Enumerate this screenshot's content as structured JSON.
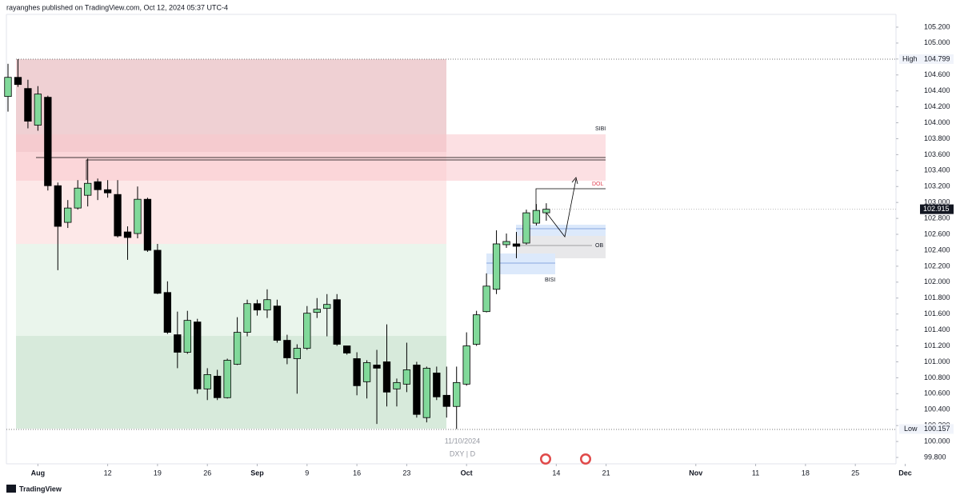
{
  "header": "rayanghes published on TradingView.com, Oct 12, 2024 05:37 UTC-4",
  "footer": "TradingView",
  "chart_data": {
    "type": "candlestick",
    "symbol": "DXY | D",
    "date_label": "11/10/2024",
    "annotations": {
      "sibi": "SIBI",
      "dol": "DOL",
      "ob": "OB",
      "bisi": "BISI"
    },
    "high_tag": {
      "label": "High",
      "value": 104.799
    },
    "low_tag": {
      "label": "Low",
      "value": 100.157
    },
    "last_price": 102.915,
    "up_color": "#81d99a",
    "down_color": "#000000",
    "ohlc": {
      "open": [
        104.33,
        104.57,
        104.43,
        103.97,
        104.32,
        103.21,
        102.75,
        102.93,
        103.09,
        103.26,
        103.16,
        103.1,
        102.63,
        102.61,
        103.04,
        102.4,
        101.87,
        101.34,
        101.12,
        101.5,
        100.66,
        100.82,
        100.55,
        100.97,
        101.37,
        101.73,
        101.65,
        101.7,
        101.27,
        101.04,
        101.17,
        101.62,
        101.67,
        101.78,
        101.2,
        101.04,
        100.75,
        100.96,
        101.0,
        100.66,
        100.72,
        100.96,
        100.3,
        100.86,
        100.58,
        100.44,
        100.72,
        101.22,
        101.63,
        101.91,
        102.47,
        102.48,
        102.49,
        102.74,
        102.87
      ],
      "high": [
        104.74,
        104.799,
        104.54,
        104.46,
        104.34,
        103.25,
        103.03,
        103.28,
        103.55,
        103.3,
        103.28,
        103.28,
        102.7,
        103.2,
        103.06,
        102.48,
        102.01,
        101.63,
        101.64,
        101.54,
        100.92,
        100.9,
        101.04,
        101.56,
        101.78,
        101.78,
        101.91,
        101.78,
        101.34,
        101.22,
        101.7,
        101.8,
        101.85,
        101.85,
        101.2,
        101.12,
        101.02,
        101.15,
        101.47,
        100.79,
        101.24,
        101.0,
        100.94,
        100.94,
        100.94,
        100.94,
        101.37,
        101.64,
        102.11,
        102.65,
        102.61,
        102.63,
        102.91,
        102.98,
        102.99
      ],
      "low": [
        104.14,
        104.45,
        103.93,
        103.9,
        103.15,
        102.15,
        102.68,
        102.91,
        102.95,
        103.03,
        103.06,
        102.56,
        102.28,
        102.55,
        102.38,
        101.85,
        101.35,
        100.92,
        101.1,
        100.6,
        100.52,
        100.52,
        100.54,
        100.96,
        101.32,
        101.58,
        101.55,
        101.24,
        100.97,
        100.6,
        101.15,
        101.55,
        101.32,
        101.2,
        101.09,
        100.58,
        100.54,
        100.22,
        100.44,
        100.44,
        100.62,
        100.3,
        100.24,
        100.52,
        100.3,
        100.157,
        100.7,
        101.2,
        101.62,
        101.85,
        102.43,
        102.3,
        102.47,
        102.71,
        102.77
      ],
      "close": [
        104.57,
        104.48,
        104.02,
        104.36,
        103.21,
        102.7,
        102.93,
        103.18,
        103.24,
        103.16,
        103.12,
        102.58,
        102.56,
        103.04,
        102.4,
        101.86,
        101.37,
        101.12,
        101.52,
        100.66,
        100.84,
        100.55,
        101.02,
        101.37,
        101.73,
        101.65,
        101.78,
        101.27,
        101.05,
        101.17,
        101.61,
        101.66,
        101.72,
        101.22,
        101.11,
        100.7,
        100.99,
        100.92,
        100.62,
        100.74,
        100.9,
        100.34,
        100.92,
        100.56,
        100.44,
        100.74,
        101.2,
        101.59,
        101.95,
        102.48,
        102.51,
        102.45,
        102.87,
        102.9,
        102.915
      ]
    },
    "xlim": [
      -0.16,
      89.08
    ],
    "xticks": [
      {
        "value": 3,
        "label": "Aug"
      },
      {
        "value": 10,
        "label": "12"
      },
      {
        "value": 15,
        "label": "19"
      },
      {
        "value": 20,
        "label": "26"
      },
      {
        "value": 25,
        "label": "Sep"
      },
      {
        "value": 30,
        "label": "9"
      },
      {
        "value": 35,
        "label": "16"
      },
      {
        "value": 40,
        "label": "23"
      },
      {
        "value": 46,
        "label": "Oct"
      },
      {
        "value": 55,
        "label": "14"
      },
      {
        "value": 60,
        "label": "21"
      },
      {
        "value": 69,
        "label": "Nov"
      },
      {
        "value": 75,
        "label": "11"
      },
      {
        "value": 80,
        "label": "18"
      },
      {
        "value": 85,
        "label": "25"
      },
      {
        "value": 90,
        "label": "Dec"
      }
    ],
    "ylim": [
      99.72,
      105.36
    ],
    "yticks": [
      {
        "value": 99.8,
        "label": "99.800"
      },
      {
        "value": 100.0,
        "label": "100.000"
      },
      {
        "value": 100.2,
        "label": "100.200"
      },
      {
        "value": 100.4,
        "label": "100.400"
      },
      {
        "value": 100.6,
        "label": "100.600"
      },
      {
        "value": 100.8,
        "label": "100.800"
      },
      {
        "value": 101.0,
        "label": "101.000"
      },
      {
        "value": 101.2,
        "label": "101.200"
      },
      {
        "value": 101.4,
        "label": "101.400"
      },
      {
        "value": 101.6,
        "label": "101.600"
      },
      {
        "value": 101.8,
        "label": "101.800"
      },
      {
        "value": 102.0,
        "label": "102.000"
      },
      {
        "value": 102.2,
        "label": "102.200"
      },
      {
        "value": 102.4,
        "label": "102.400"
      },
      {
        "value": 102.6,
        "label": "102.600"
      },
      {
        "value": 102.8,
        "label": "102.800"
      },
      {
        "value": 103.0,
        "label": "103.000"
      },
      {
        "value": 103.2,
        "label": "103.200"
      },
      {
        "value": 103.4,
        "label": "103.400"
      },
      {
        "value": 103.6,
        "label": "103.600"
      },
      {
        "value": 103.8,
        "label": "103.800"
      },
      {
        "value": 104.0,
        "label": "104.000"
      },
      {
        "value": 104.2,
        "label": "104.200"
      },
      {
        "value": 104.4,
        "label": "104.400"
      },
      {
        "value": 104.6,
        "label": "104.600"
      },
      {
        "value": 104.8,
        "label": "104.800"
      },
      {
        "value": 105.0,
        "label": "105.000"
      },
      {
        "value": 105.2,
        "label": "105.200"
      }
    ]
  }
}
